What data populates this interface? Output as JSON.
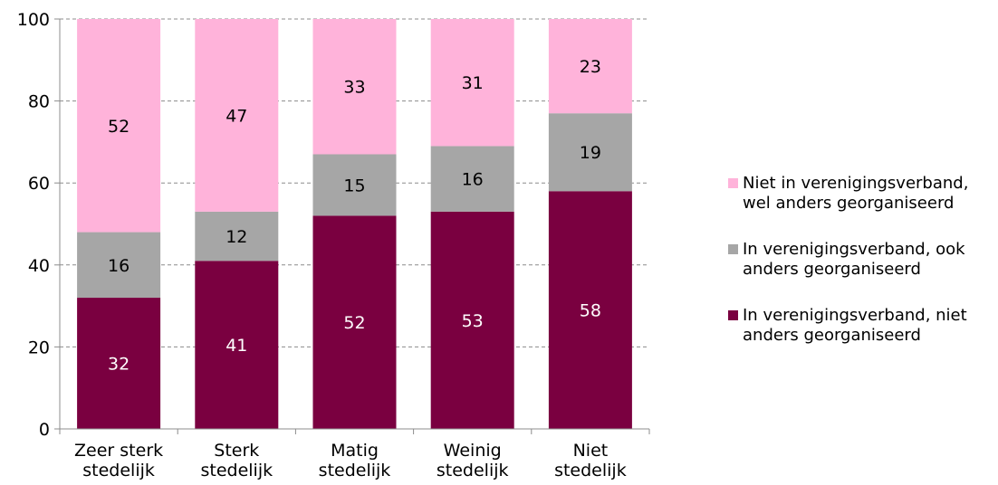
{
  "chart_data": {
    "type": "bar",
    "stacked": true,
    "categories": [
      [
        "Zeer sterk",
        "stedelijk"
      ],
      [
        "Sterk",
        "stedelijk"
      ],
      [
        "Matig",
        "stedelijk"
      ],
      [
        "Weinig",
        "stedelijk"
      ],
      [
        "Niet",
        "stedelijk"
      ]
    ],
    "series": [
      {
        "name": "In verenigingsverband, niet anders georganiseerd",
        "legend_lines": [
          "In verenigingsverband, niet",
          "anders georganiseerd"
        ],
        "color": "#7a0040",
        "label_color": "#ffffff",
        "values": [
          32,
          41,
          52,
          53,
          58
        ]
      },
      {
        "name": "In verenigingsverband, ook anders georganiseerd",
        "legend_lines": [
          "In verenigingsverband, ook",
          "anders georganiseerd"
        ],
        "color": "#a6a6a6",
        "label_color": "#000000",
        "values": [
          16,
          12,
          15,
          16,
          19
        ]
      },
      {
        "name": "Niet in verenigingsverband, wel anders georganiseerd",
        "legend_lines": [
          "Niet in verenigingsverband,",
          "wel anders georganiseerd"
        ],
        "color": "#ffb3da",
        "label_color": "#000000",
        "values": [
          52,
          47,
          33,
          31,
          23
        ]
      }
    ],
    "ylim": [
      0,
      100
    ],
    "yticks": [
      0,
      20,
      40,
      60,
      80,
      100
    ],
    "grid": true,
    "legend_position": "right",
    "title": "",
    "xlabel": "",
    "ylabel": ""
  }
}
